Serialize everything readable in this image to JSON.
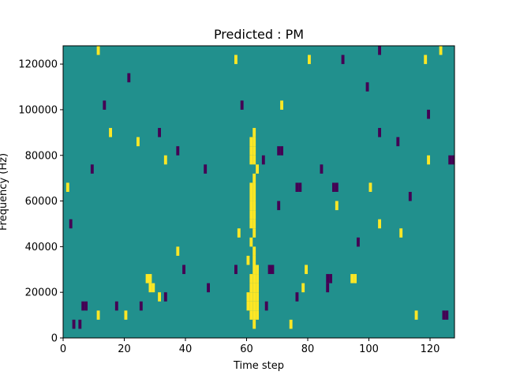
{
  "chart_data": {
    "type": "heatmap",
    "title": "Predicted : PM",
    "xlabel": "Time step",
    "ylabel": "Frequency (Hz)",
    "xlim": [
      0,
      128
    ],
    "ylim": [
      0,
      128000
    ],
    "x_ticks": [
      0,
      20,
      40,
      60,
      80,
      100,
      120
    ],
    "y_ticks": [
      0,
      20000,
      40000,
      60000,
      80000,
      100000,
      120000
    ],
    "x_tick_labels": [
      "0",
      "20",
      "40",
      "60",
      "80",
      "100",
      "120"
    ],
    "y_tick_labels": [
      "0",
      "20000",
      "40000",
      "60000",
      "80000",
      "100000",
      "120000"
    ],
    "grid": false,
    "colors": {
      "low": "#440154",
      "mid": "#21908d",
      "high": "#fde725"
    },
    "background_value": 0,
    "row_height": 4000,
    "cells": [
      {
        "t": 62,
        "f": 4000,
        "v": 1
      },
      {
        "t": 61,
        "f": 8000,
        "v": 1
      },
      {
        "t": 62,
        "f": 8000,
        "v": 1
      },
      {
        "t": 63,
        "f": 8000,
        "v": 1
      },
      {
        "t": 60,
        "f": 12000,
        "v": 1
      },
      {
        "t": 61,
        "f": 12000,
        "v": 1
      },
      {
        "t": 62,
        "f": 12000,
        "v": 1
      },
      {
        "t": 63,
        "f": 12000,
        "v": 1
      },
      {
        "t": 60,
        "f": 16000,
        "v": 1
      },
      {
        "t": 61,
        "f": 16000,
        "v": 1
      },
      {
        "t": 62,
        "f": 16000,
        "v": 1
      },
      {
        "t": 63,
        "f": 16000,
        "v": 1
      },
      {
        "t": 61,
        "f": 20000,
        "v": 1
      },
      {
        "t": 62,
        "f": 20000,
        "v": 1
      },
      {
        "t": 63,
        "f": 20000,
        "v": 1
      },
      {
        "t": 61,
        "f": 24000,
        "v": 1
      },
      {
        "t": 62,
        "f": 24000,
        "v": 1
      },
      {
        "t": 63,
        "f": 24000,
        "v": 1
      },
      {
        "t": 62,
        "f": 28000,
        "v": 1
      },
      {
        "t": 63,
        "f": 28000,
        "v": 1
      },
      {
        "t": 60,
        "f": 32000,
        "v": 1
      },
      {
        "t": 62,
        "f": 32000,
        "v": 1
      },
      {
        "t": 62,
        "f": 36000,
        "v": 1
      },
      {
        "t": 61,
        "f": 40000,
        "v": 1
      },
      {
        "t": 62,
        "f": 44000,
        "v": 1
      },
      {
        "t": 61,
        "f": 48000,
        "v": 1
      },
      {
        "t": 62,
        "f": 48000,
        "v": 1
      },
      {
        "t": 61,
        "f": 52000,
        "v": 1
      },
      {
        "t": 62,
        "f": 52000,
        "v": 1
      },
      {
        "t": 61,
        "f": 56000,
        "v": 1
      },
      {
        "t": 62,
        "f": 56000,
        "v": 1
      },
      {
        "t": 61,
        "f": 60000,
        "v": 1
      },
      {
        "t": 62,
        "f": 60000,
        "v": 1
      },
      {
        "t": 61,
        "f": 64000,
        "v": 1
      },
      {
        "t": 62,
        "f": 64000,
        "v": 1
      },
      {
        "t": 62,
        "f": 68000,
        "v": 1
      },
      {
        "t": 63,
        "f": 72000,
        "v": 1
      },
      {
        "t": 61,
        "f": 76000,
        "v": 1
      },
      {
        "t": 62,
        "f": 76000,
        "v": 1
      },
      {
        "t": 61,
        "f": 80000,
        "v": 1
      },
      {
        "t": 62,
        "f": 80000,
        "v": 1
      },
      {
        "t": 61,
        "f": 84000,
        "v": 1
      },
      {
        "t": 62,
        "f": 84000,
        "v": 1
      },
      {
        "t": 62,
        "f": 88000,
        "v": 1
      },
      {
        "t": 28,
        "f": 20000,
        "v": 1
      },
      {
        "t": 29,
        "f": 20000,
        "v": 1
      },
      {
        "t": 27,
        "f": 24000,
        "v": 1
      },
      {
        "t": 28,
        "f": 24000,
        "v": 1
      },
      {
        "t": 94,
        "f": 24000,
        "v": 1
      },
      {
        "t": 95,
        "f": 24000,
        "v": 1
      },
      {
        "t": 78,
        "f": 20000,
        "v": 1
      },
      {
        "t": 3,
        "f": 4000,
        "v": -1
      },
      {
        "t": 5,
        "f": 4000,
        "v": -1
      },
      {
        "t": 6,
        "f": 12000,
        "v": -1
      },
      {
        "t": 7,
        "f": 12000,
        "v": -1
      },
      {
        "t": 17,
        "f": 12000,
        "v": -1
      },
      {
        "t": 25,
        "f": 12000,
        "v": -1
      },
      {
        "t": 33,
        "f": 16000,
        "v": -1
      },
      {
        "t": 39,
        "f": 28000,
        "v": -1
      },
      {
        "t": 47,
        "f": 20000,
        "v": -1
      },
      {
        "t": 66,
        "f": 12000,
        "v": -1
      },
      {
        "t": 67,
        "f": 28000,
        "v": -1
      },
      {
        "t": 68,
        "f": 28000,
        "v": -1
      },
      {
        "t": 76,
        "f": 16000,
        "v": -1
      },
      {
        "t": 86,
        "f": 24000,
        "v": -1
      },
      {
        "t": 87,
        "f": 24000,
        "v": -1
      },
      {
        "t": 86,
        "f": 20000,
        "v": -1
      },
      {
        "t": 70,
        "f": 80000,
        "v": -1
      },
      {
        "t": 71,
        "f": 80000,
        "v": -1
      },
      {
        "t": 65,
        "f": 76000,
        "v": -1
      },
      {
        "t": 70,
        "f": 56000,
        "v": -1
      },
      {
        "t": 76,
        "f": 64000,
        "v": -1
      },
      {
        "t": 77,
        "f": 64000,
        "v": -1
      },
      {
        "t": 88,
        "f": 64000,
        "v": -1
      },
      {
        "t": 89,
        "f": 64000,
        "v": -1
      },
      {
        "t": 126,
        "f": 76000,
        "v": -1
      },
      {
        "t": 127,
        "f": 76000,
        "v": -1
      },
      {
        "t": 124,
        "f": 8000,
        "v": -1
      },
      {
        "t": 125,
        "f": 8000,
        "v": -1
      },
      {
        "t": 46,
        "f": 72000,
        "v": -1
      },
      {
        "t": 37,
        "f": 80000,
        "v": -1
      },
      {
        "t": 31,
        "f": 88000,
        "v": -1
      },
      {
        "t": 84,
        "f": 72000,
        "v": -1
      },
      {
        "t": 103,
        "f": 88000,
        "v": -1
      },
      {
        "t": 109,
        "f": 84000,
        "v": -1
      },
      {
        "t": 113,
        "f": 60000,
        "v": -1
      },
      {
        "t": 99,
        "f": 108000,
        "v": -1
      },
      {
        "t": 91,
        "f": 120000,
        "v": -1
      },
      {
        "t": 103,
        "f": 124000,
        "v": -1
      },
      {
        "t": 13,
        "f": 100000,
        "v": -1
      },
      {
        "t": 21,
        "f": 112000,
        "v": -1
      },
      {
        "t": 58,
        "f": 100000,
        "v": -1
      },
      {
        "t": 119,
        "f": 96000,
        "v": -1
      },
      {
        "t": 2,
        "f": 48000,
        "v": -1
      },
      {
        "t": 9,
        "f": 72000,
        "v": -1
      },
      {
        "t": 96,
        "f": 40000,
        "v": -1
      },
      {
        "t": 56,
        "f": 28000,
        "v": -1
      },
      {
        "t": 1,
        "f": 64000,
        "v": 1
      },
      {
        "t": 11,
        "f": 8000,
        "v": 1
      },
      {
        "t": 20,
        "f": 8000,
        "v": 1
      },
      {
        "t": 31,
        "f": 16000,
        "v": 1
      },
      {
        "t": 37,
        "f": 36000,
        "v": 1
      },
      {
        "t": 57,
        "f": 44000,
        "v": 1
      },
      {
        "t": 74,
        "f": 4000,
        "v": 1
      },
      {
        "t": 79,
        "f": 28000,
        "v": 1
      },
      {
        "t": 100,
        "f": 64000,
        "v": 1
      },
      {
        "t": 115,
        "f": 8000,
        "v": 1
      },
      {
        "t": 119,
        "f": 76000,
        "v": 1
      },
      {
        "t": 123,
        "f": 124000,
        "v": 1
      },
      {
        "t": 11,
        "f": 124000,
        "v": 1
      },
      {
        "t": 56,
        "f": 120000,
        "v": 1
      },
      {
        "t": 80,
        "f": 120000,
        "v": 1
      },
      {
        "t": 71,
        "f": 100000,
        "v": 1
      },
      {
        "t": 118,
        "f": 120000,
        "v": 1
      },
      {
        "t": 15,
        "f": 88000,
        "v": 1
      },
      {
        "t": 24,
        "f": 84000,
        "v": 1
      },
      {
        "t": 33,
        "f": 76000,
        "v": 1
      },
      {
        "t": 103,
        "f": 48000,
        "v": 1
      },
      {
        "t": 110,
        "f": 44000,
        "v": 1
      },
      {
        "t": 89,
        "f": 56000,
        "v": 1
      }
    ]
  }
}
